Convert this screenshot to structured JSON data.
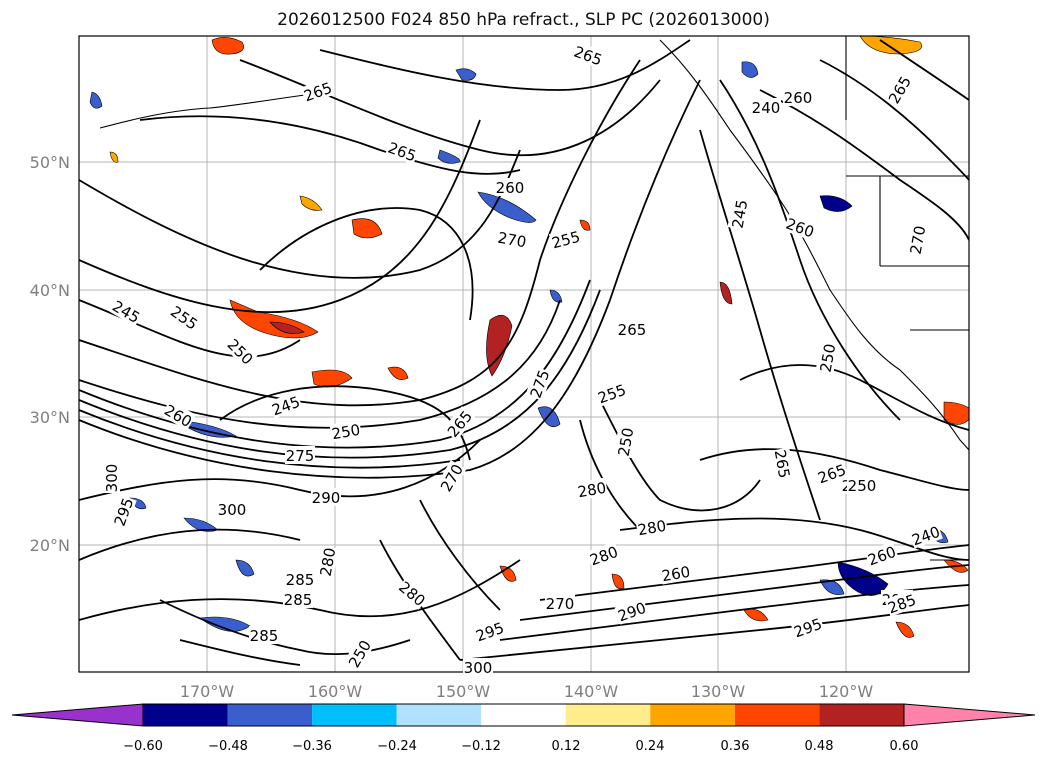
{
  "title": "2026012500 F024 850 hPa refract., SLP PC (2026013000)",
  "lat_labels": [
    "50°N",
    "40°N",
    "30°N",
    "20°N"
  ],
  "lon_labels": [
    "170°W",
    "160°W",
    "150°W",
    "140°W",
    "130°W",
    "120°W"
  ],
  "colorbar": {
    "tick_labels": [
      "−0.60",
      "−0.48",
      "−0.36",
      "−0.24",
      "−0.12",
      "0.12",
      "0.24",
      "0.36",
      "0.48",
      "0.60"
    ],
    "colors": [
      "#9932cc",
      "#00008b",
      "#3a5fcd",
      "#00bfff",
      "#b0e2ff",
      "#ffffff",
      "#ffec8b",
      "#ffa500",
      "#ff4500",
      "#b22222",
      "#ff82ab"
    ]
  },
  "contour_labels": [
    "265",
    "265",
    "260",
    "270",
    "255",
    "265",
    "245",
    "255",
    "250",
    "260",
    "245",
    "250",
    "275",
    "265",
    "290",
    "270",
    "255",
    "250",
    "265",
    "250",
    "280",
    "280",
    "260",
    "290",
    "295",
    "300",
    "285",
    "280",
    "285",
    "280",
    "300",
    "295",
    "295",
    "270",
    "240",
    "245",
    "260",
    "270",
    "265",
    "240",
    "260",
    "265",
    "265",
    "250",
    "250",
    "250",
    "275",
    "300",
    "295",
    "280",
    "285",
    "260",
    "285"
  ]
}
